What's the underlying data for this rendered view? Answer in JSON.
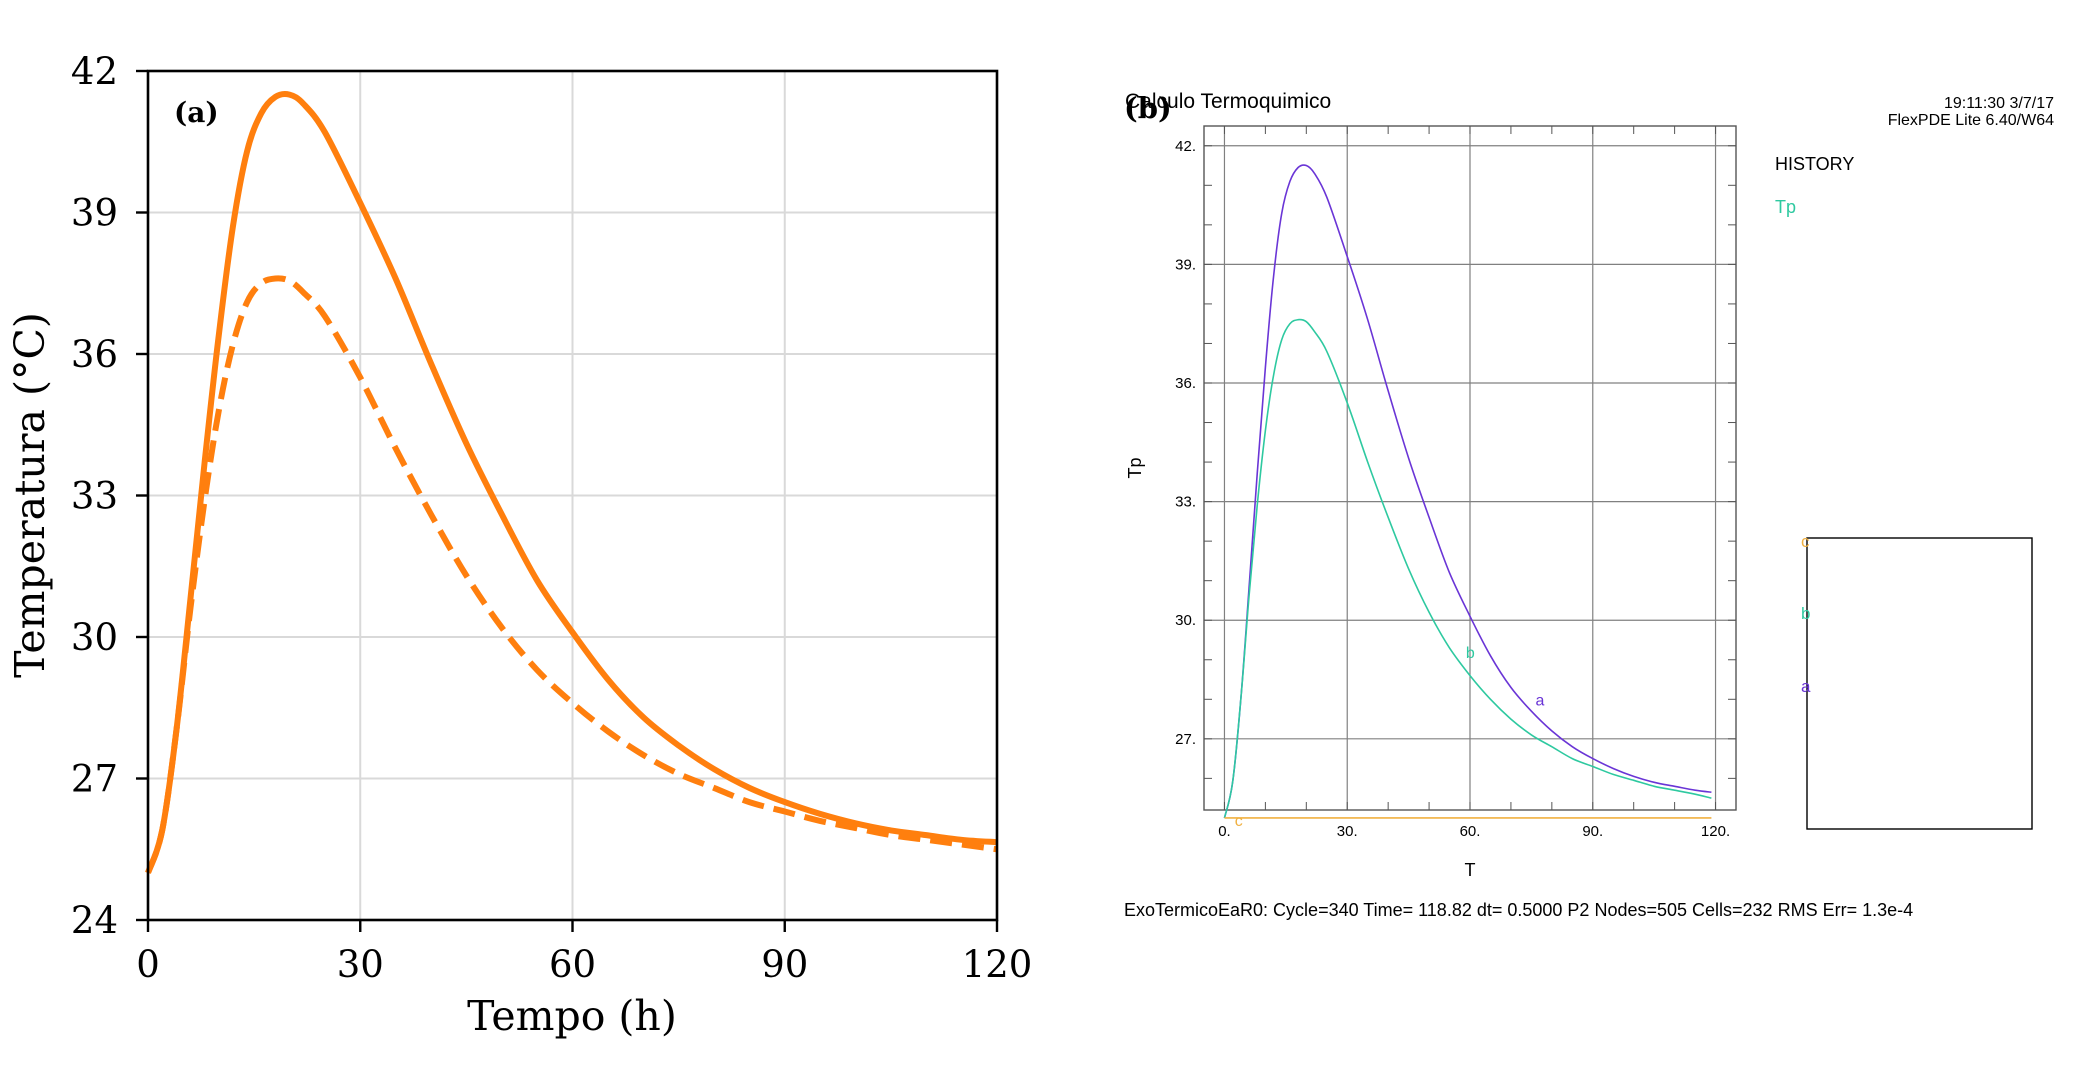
{
  "colors": {
    "orange": "#ff7f0e",
    "grid_a": "#d9d9d9",
    "axis": "#000000",
    "grid_b": "#808080",
    "series_a_purple": "#6a35d6",
    "series_b_teal": "#2ec9a0",
    "series_c_yellow": "#f0b040"
  },
  "chart_data": [
    {
      "panel_label": "(a)",
      "type": "line",
      "xlabel": "Tempo (h)",
      "ylabel": "Temperatura (°C)",
      "xlim": [
        0,
        120
      ],
      "ylim": [
        24,
        42
      ],
      "xticks": [
        "0",
        "30",
        "60",
        "90",
        "120"
      ],
      "yticks": [
        "24",
        "27",
        "30",
        "33",
        "36",
        "39",
        "42"
      ],
      "grid": true,
      "series": [
        {
          "style": "solid",
          "x": [
            0,
            2,
            4,
            6,
            8,
            10,
            12,
            14,
            16,
            18,
            20,
            22,
            25,
            30,
            35,
            40,
            45,
            50,
            55,
            60,
            65,
            70,
            75,
            80,
            85,
            90,
            95,
            100,
            105,
            110,
            115,
            120
          ],
          "y": [
            25.0,
            25.9,
            28.0,
            30.8,
            33.7,
            36.4,
            38.7,
            40.3,
            41.1,
            41.45,
            41.5,
            41.3,
            40.7,
            39.2,
            37.6,
            35.8,
            34.1,
            32.6,
            31.2,
            30.1,
            29.1,
            28.3,
            27.7,
            27.2,
            26.8,
            26.5,
            26.25,
            26.05,
            25.9,
            25.8,
            25.7,
            25.65
          ]
        },
        {
          "style": "dashed",
          "x": [
            0,
            2,
            4,
            6,
            8,
            10,
            12,
            14,
            16,
            18,
            20,
            22,
            25,
            30,
            35,
            40,
            45,
            50,
            55,
            60,
            65,
            70,
            75,
            80,
            85,
            90,
            95,
            100,
            105,
            110,
            115,
            120
          ],
          "y": [
            25.0,
            25.9,
            28.0,
            30.6,
            32.9,
            34.8,
            36.2,
            37.1,
            37.5,
            37.6,
            37.55,
            37.3,
            36.8,
            35.5,
            34.0,
            32.6,
            31.3,
            30.2,
            29.3,
            28.6,
            28.0,
            27.5,
            27.1,
            26.8,
            26.5,
            26.3,
            26.1,
            25.95,
            25.8,
            25.7,
            25.6,
            25.5
          ]
        }
      ]
    },
    {
      "panel_label": "(b)",
      "type": "line",
      "title": "Calculo Termoquimico",
      "timestamp": "19:11:30 3/7/17",
      "software": "FlexPDE Lite 6.40/W64",
      "xlabel": "T",
      "ylabel": "Tp",
      "xlim": [
        -5,
        125
      ],
      "ylim": [
        25.2,
        42.5
      ],
      "xticks": [
        "0.",
        "30.",
        "60.",
        "90.",
        "120."
      ],
      "yticks": [
        "27.",
        "30.",
        "33.",
        "36.",
        "39.",
        "42."
      ],
      "grid": true,
      "legend_title": "HISTORY",
      "legend_var": "Tp",
      "legend_markers": [
        "c",
        "b",
        "a"
      ],
      "footer": "ExoTermicoEaR0:  Cycle=340  Time= 118.82  dt= 0.5000  P2  Nodes=505 Cells=232 RMS Err= 1.3e-4",
      "series": [
        {
          "name": "a",
          "x": [
            0,
            2,
            4,
            6,
            8,
            10,
            12,
            14,
            16,
            18,
            20,
            22,
            25,
            30,
            35,
            40,
            45,
            50,
            55,
            60,
            65,
            70,
            75,
            80,
            85,
            90,
            95,
            100,
            105,
            110,
            115,
            119
          ],
          "y": [
            25.0,
            25.9,
            28.0,
            30.8,
            33.7,
            36.4,
            38.7,
            40.3,
            41.1,
            41.45,
            41.5,
            41.3,
            40.7,
            39.2,
            37.6,
            35.8,
            34.1,
            32.6,
            31.2,
            30.1,
            29.1,
            28.3,
            27.7,
            27.2,
            26.8,
            26.5,
            26.25,
            26.05,
            25.9,
            25.8,
            25.7,
            25.65
          ]
        },
        {
          "name": "b",
          "x": [
            0,
            2,
            4,
            6,
            8,
            10,
            12,
            14,
            16,
            18,
            20,
            22,
            25,
            30,
            35,
            40,
            45,
            50,
            55,
            60,
            65,
            70,
            75,
            80,
            85,
            90,
            95,
            100,
            105,
            110,
            115,
            119
          ],
          "y": [
            25.0,
            25.9,
            28.0,
            30.6,
            32.9,
            34.8,
            36.2,
            37.1,
            37.5,
            37.6,
            37.55,
            37.3,
            36.8,
            35.5,
            34.0,
            32.6,
            31.3,
            30.2,
            29.3,
            28.6,
            28.0,
            27.5,
            27.1,
            26.8,
            26.5,
            26.3,
            26.1,
            25.95,
            25.8,
            25.7,
            25.6,
            25.5
          ]
        },
        {
          "name": "c",
          "x": [
            0,
            119
          ],
          "y": [
            25.0,
            25.0
          ]
        }
      ],
      "curve_labels": [
        {
          "name": "a",
          "x": 76,
          "y": 28.0
        },
        {
          "name": "b",
          "x": 59,
          "y": 29.2
        },
        {
          "name": "c",
          "x": 2.5,
          "y": 24.95
        }
      ]
    }
  ]
}
